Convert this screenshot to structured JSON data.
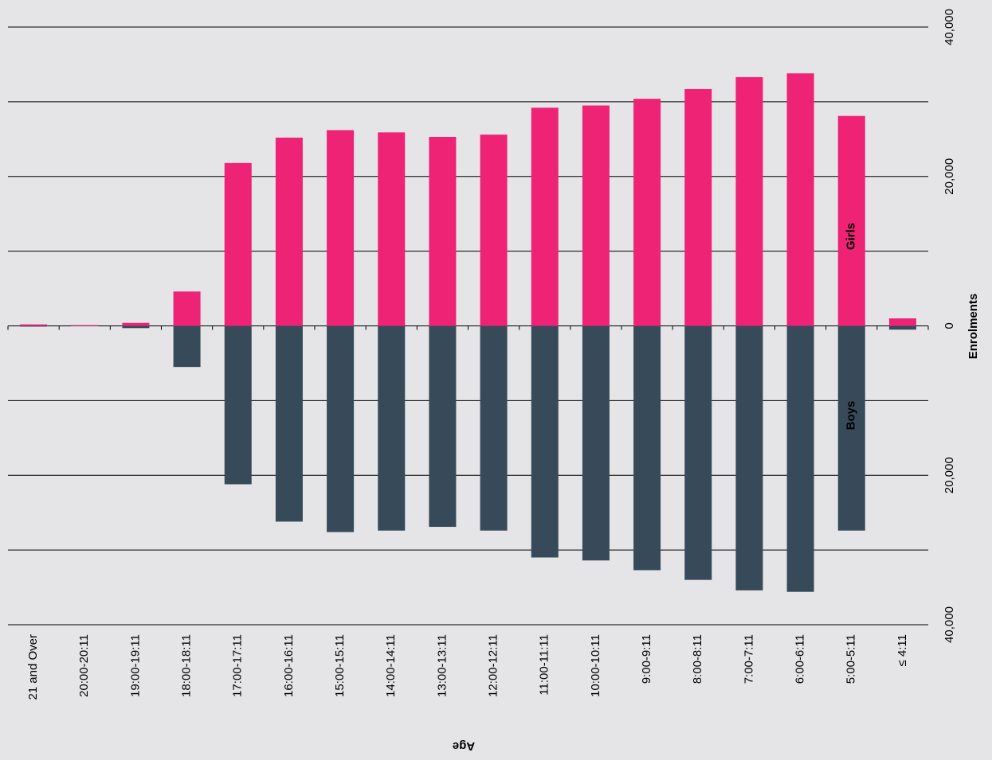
{
  "chart_data": {
    "type": "diverging_bar",
    "x_axis_label": "Age",
    "y_axis_label": "Enrolments",
    "categories": [
      "21 and Over",
      "20:00-20:11",
      "19:00-19:11",
      "18:00-18:11",
      "17:00-17:11",
      "16:00-16:11",
      "15:00-15:11",
      "14:00-14:11",
      "13:00-13:11",
      "12:00-12:11",
      "11:00-11:11",
      "10:00-10:11",
      "9:00-9:11",
      "8:00-8:11",
      "7:00-7:11",
      "6:00-6:11",
      "5:00-5:11",
      "≤ 4:11"
    ],
    "series": [
      {
        "name": "Girls",
        "color": "#ee2375",
        "values": [
          200,
          100,
          400,
          4600,
          21800,
          25200,
          26200,
          25900,
          25300,
          25600,
          29200,
          29500,
          30400,
          31700,
          33300,
          33800,
          28100,
          1000
        ]
      },
      {
        "name": "Boys",
        "color": "#374a5a",
        "values": [
          -100,
          -50,
          -300,
          -5500,
          -21200,
          -26200,
          -27600,
          -27400,
          -26900,
          -27400,
          -31000,
          -31400,
          -32700,
          -34000,
          -35400,
          -35600,
          -27400,
          -500
        ]
      }
    ],
    "ylim": [
      -40000,
      40000
    ],
    "yticks": [
      {
        "value": -40000,
        "label": "40,000"
      },
      {
        "value": -20000,
        "label": "20,000"
      },
      0,
      {
        "value": 20000,
        "label": "20,000"
      },
      {
        "value": 40000,
        "label": "40,000"
      }
    ],
    "minor_gridlines": [
      -30000,
      -10000,
      10000,
      30000
    ],
    "negative_tick_color": "#ff0000",
    "grid": true
  }
}
